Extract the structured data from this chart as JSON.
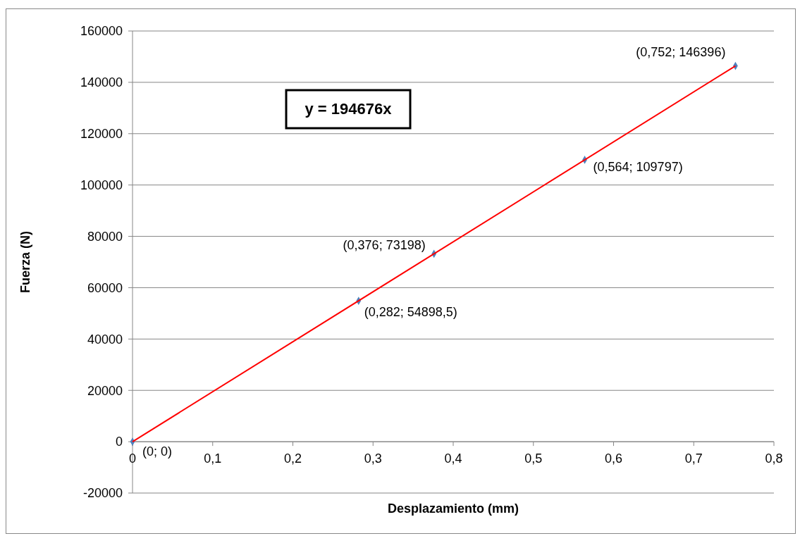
{
  "chart_data": {
    "type": "scatter",
    "xlabel": "Desplazamiento (mm)",
    "ylabel": "Fuerza (N)",
    "annotations": [
      "y = 194676x"
    ],
    "series": [
      {
        "color": "#4f81bd",
        "marker": "diamond",
        "x": [
          0,
          0.282,
          0.376,
          0.564,
          0.752
        ],
        "values": [
          0,
          54898.5,
          73198,
          109797,
          146396
        ],
        "value_labels": [
          "(0; 0)",
          "(0,282; 54898,5)",
          "(0,376; 73198)",
          "(0,564; 109797)",
          "(0,752; 146396)"
        ]
      },
      {
        "type": "line",
        "color": "#ff0000",
        "marker": "none",
        "line_style": "solid",
        "x": [
          0,
          0.752
        ],
        "values": [
          0,
          146396
        ]
      }
    ],
    "xlim": [
      0,
      0.8
    ],
    "xticks": [
      0,
      {
        "value": 0.1,
        "label": "0,1"
      },
      {
        "value": 0.2,
        "label": "0,2"
      },
      {
        "value": 0.3,
        "label": "0,3"
      },
      {
        "value": 0.4,
        "label": "0,4"
      },
      {
        "value": 0.5,
        "label": "0,5"
      },
      {
        "value": 0.6,
        "label": "0,6"
      },
      {
        "value": 0.7,
        "label": "0,7"
      },
      {
        "value": 0.8,
        "label": "0,8"
      }
    ],
    "ylim": [
      -20000,
      160000
    ],
    "yticks": [
      -20000,
      0,
      20000,
      40000,
      60000,
      80000,
      100000,
      120000,
      140000,
      160000
    ],
    "grid": "y"
  }
}
